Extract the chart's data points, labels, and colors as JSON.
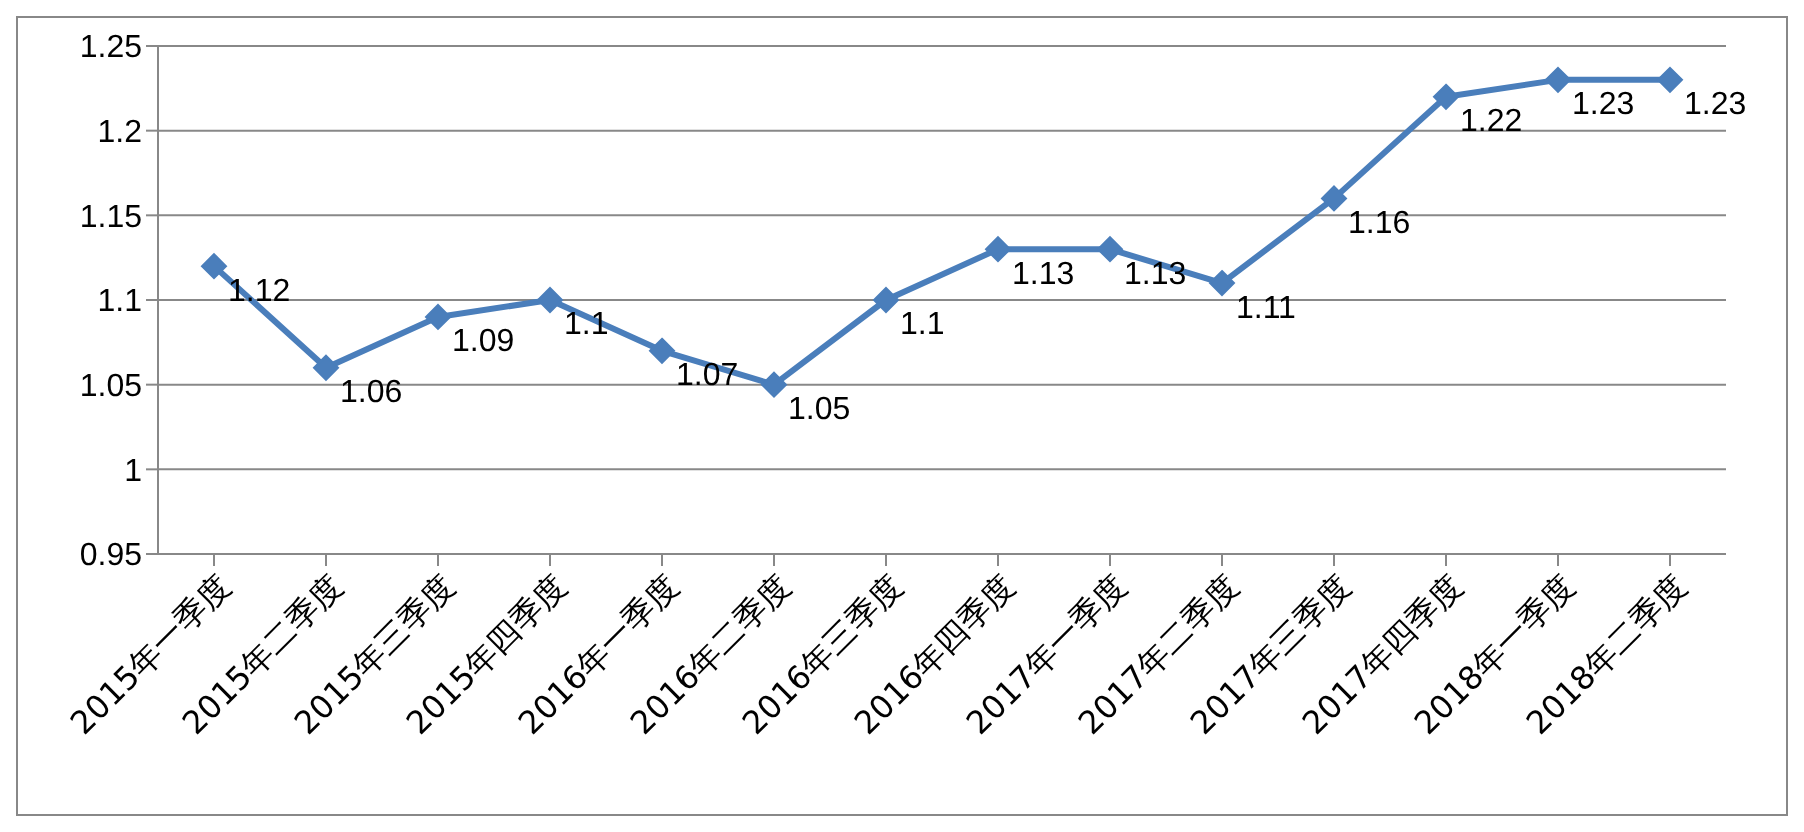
{
  "chart_data": {
    "type": "line",
    "categories": [
      "2015年一季度",
      "2015年二季度",
      "2015年三季度",
      "2015年四季度",
      "2016年一季度",
      "2016年二季度",
      "2016年三季度",
      "2016年四季度",
      "2017年一季度",
      "2017年二季度",
      "2017年三季度",
      "2017年四季度",
      "2018年一季度",
      "2018年二季度"
    ],
    "series": [
      {
        "color": "#4a7ebb",
        "values": [
          1.12,
          1.06,
          1.09,
          1.1,
          1.07,
          1.05,
          1.1,
          1.13,
          1.13,
          1.11,
          1.16,
          1.22,
          1.23,
          1.23
        ]
      }
    ],
    "ylim": [
      0.95,
      1.25
    ],
    "yticks": [
      0.95,
      1,
      1.05,
      1.1,
      1.15,
      1.2,
      1.25
    ],
    "grid": "y",
    "marker": "diamond",
    "line_style": "solid",
    "data_labels": true
  }
}
